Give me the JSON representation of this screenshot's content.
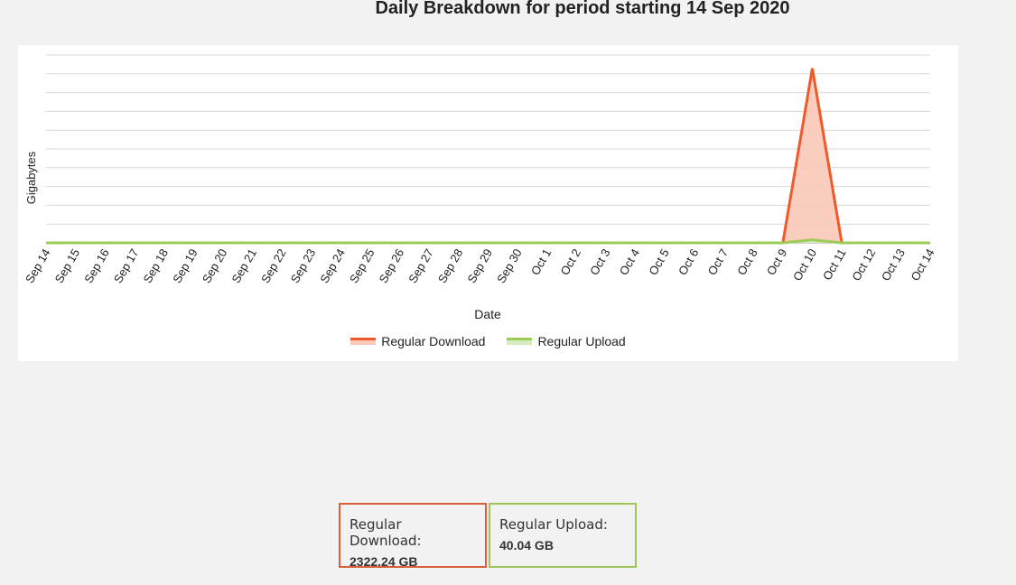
{
  "page": {
    "title": "Daily Breakdown for period starting 14 Sep 2020"
  },
  "colors": {
    "download_line": "#ee5a2b",
    "download_fill": "#f9c8b8",
    "upload_line": "#9ccc54",
    "upload_fill": "#d8eac0",
    "grid": "#d8d8d8",
    "axis": "#999999"
  },
  "chart_data": {
    "type": "area",
    "xlabel": "Date",
    "ylabel": "Gigabytes",
    "categories": [
      "Sep 14",
      "Sep 15",
      "Sep 16",
      "Sep 17",
      "Sep 18",
      "Sep 19",
      "Sep 20",
      "Sep 21",
      "Sep 22",
      "Sep 23",
      "Sep 24",
      "Sep 25",
      "Sep 26",
      "Sep 27",
      "Sep 28",
      "Sep 29",
      "Sep 30",
      "Oct 1",
      "Oct 2",
      "Oct 3",
      "Oct 4",
      "Oct 5",
      "Oct 6",
      "Oct 7",
      "Oct 8",
      "Oct 9",
      "Oct 10",
      "Oct 11",
      "Oct 12",
      "Oct 13",
      "Oct 14"
    ],
    "ylim": [
      0,
      2500
    ],
    "grid": true,
    "legend_placement": "bottom",
    "series": [
      {
        "name": "Regular Download",
        "values": [
          0,
          0,
          0,
          0,
          0,
          0,
          0,
          0,
          0,
          0,
          0,
          0,
          0,
          0,
          0,
          0,
          0,
          0,
          0,
          0,
          0,
          0,
          0,
          0,
          0,
          0,
          2322.24,
          0,
          0,
          0,
          0
        ]
      },
      {
        "name": "Regular Upload",
        "values": [
          0,
          0,
          0,
          0,
          0,
          0,
          0,
          0,
          0,
          0,
          0,
          0,
          0,
          0,
          0,
          0,
          0,
          0,
          0,
          0,
          0,
          0,
          0,
          0,
          0,
          0,
          40.04,
          0,
          0,
          0,
          0
        ]
      }
    ]
  },
  "totals": {
    "download_label": "Regular Download:",
    "download_value": "2322.24 GB",
    "upload_label": "Regular Upload:",
    "upload_value": "40.04 GB"
  }
}
